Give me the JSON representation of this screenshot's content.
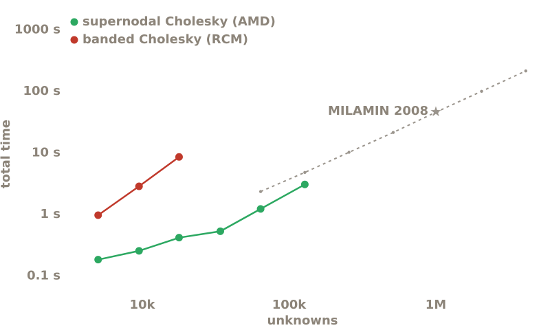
{
  "chart_data": {
    "type": "line",
    "xlabel": "unknowns",
    "ylabel": "total time",
    "x_scale": "log",
    "y_scale": "log",
    "xlim": [
      2500,
      4500000
    ],
    "ylim": [
      0.05,
      2000
    ],
    "grid": false,
    "legend_position": "top-left",
    "x_ticks": [
      {
        "value": 10000,
        "label": "10k"
      },
      {
        "value": 100000,
        "label": "100k"
      },
      {
        "value": 1000000,
        "label": "1M"
      }
    ],
    "y_ticks": [
      {
        "value": 0.1,
        "label": "0.1 s"
      },
      {
        "value": 1,
        "label": "1 s"
      },
      {
        "value": 10,
        "label": "10 s"
      },
      {
        "value": 100,
        "label": "100 s"
      },
      {
        "value": 1000,
        "label": "1000 s"
      }
    ],
    "series": [
      {
        "name": "supernodal Cholesky (AMD)",
        "color": "#2ca861",
        "style": "solid",
        "x": [
          5000,
          9500,
          17800,
          34000,
          64000,
          128000
        ],
        "y": [
          0.18,
          0.25,
          0.41,
          0.52,
          1.2,
          3.0
        ]
      },
      {
        "name": "banded Cholesky (RCM)",
        "color": "#c0392b",
        "style": "solid",
        "x": [
          5000,
          9500,
          17800
        ],
        "y": [
          0.95,
          2.8,
          8.4
        ]
      },
      {
        "name": "",
        "color": "#9a948c",
        "style": "dotted",
        "x": [
          64000,
          128000,
          256000,
          512000,
          1024000,
          2048000,
          4096000
        ],
        "y": [
          2.3,
          4.7,
          10,
          21,
          46,
          98,
          210
        ]
      }
    ],
    "annotations": [
      {
        "text": "MILAMIN 2008",
        "x": 1000000,
        "y": 46,
        "marker": "star"
      }
    ]
  },
  "colors": {
    "text": "#8c8479",
    "star": "#9a948c"
  }
}
